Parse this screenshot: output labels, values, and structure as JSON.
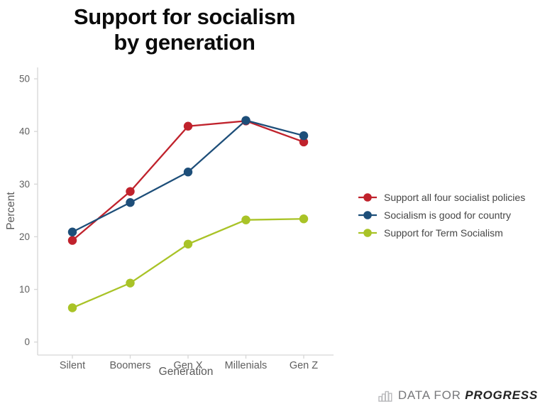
{
  "title": {
    "line1": "Support for socialism",
    "line2": "by generation"
  },
  "colors": {
    "axis_line": "#d6d6d6",
    "tick_text": "#5f5f5f",
    "axis_label_text": "#595959",
    "legend_text": "#464646",
    "title_text": "#0b0b0b",
    "logo_gray": "#77787b",
    "logo_dark": "#232323",
    "background": "#ffffff"
  },
  "chart_data": {
    "type": "line",
    "title": "Support for socialism by generation",
    "xlabel": "Generation",
    "ylabel": "Percent",
    "categories": [
      "Silent",
      "Boomers",
      "Gen X",
      "Millenials",
      "Gen Z"
    ],
    "yticks": [
      0,
      10,
      20,
      30,
      40,
      50
    ],
    "ylim": [
      0,
      50
    ],
    "grid": false,
    "legend_position": "right",
    "marker": "circle",
    "series": [
      {
        "name": "Support all four socialist policies",
        "color": "#c0222c",
        "values": [
          19.3,
          28.6,
          41.0,
          42.0,
          38.0
        ]
      },
      {
        "name": "Socialism is good for country",
        "color": "#1d4e79",
        "values": [
          20.9,
          26.5,
          32.3,
          42.1,
          39.2
        ]
      },
      {
        "name": "Support for Term Socialism",
        "color": "#a9c327",
        "values": [
          6.5,
          11.2,
          18.6,
          23.2,
          23.4
        ]
      }
    ]
  },
  "logo": {
    "icon": "bar-chart-icon",
    "text_regular": "DATA FOR",
    "text_bold": "PROGRESS"
  }
}
